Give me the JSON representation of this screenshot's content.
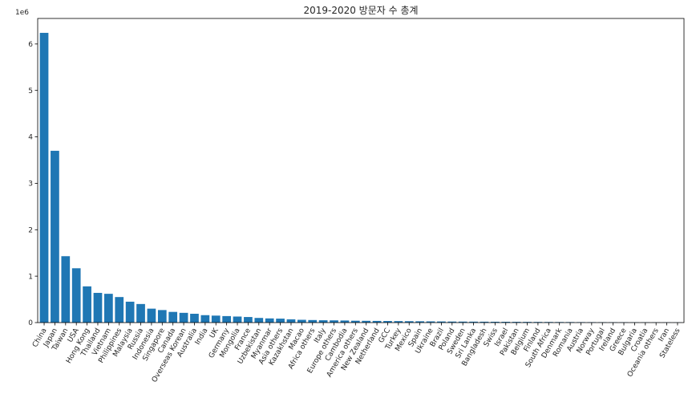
{
  "chart_data": {
    "type": "bar",
    "title": "2019-2020 방문자 수 총계",
    "xlabel": "",
    "ylabel": "",
    "y_offset_label": "1e6",
    "y_scale": 1000000,
    "ylim": [
      0,
      6550000
    ],
    "yticks": [
      0,
      1,
      2,
      3,
      4,
      5,
      6
    ],
    "grid": false,
    "legend": "none",
    "bar_color": "#1f77b4",
    "categories": [
      "China",
      "Japan",
      "Taiwan",
      "USA",
      "Hong Kong",
      "Thailand",
      "Vietnam",
      "Philippines",
      "Malaysia",
      "Russia",
      "Indonesia",
      "Singapore",
      "Canada",
      "Overseas Korean",
      "Australia",
      "India",
      "UK",
      "Germany",
      "Mongolia",
      "France",
      "Uzbekistan",
      "Myanmar",
      "Asia others",
      "Kazakhstan",
      "Macao",
      "Africa others",
      "Italy",
      "Europe others",
      "Cambodia",
      "America others",
      "New Zealand",
      "Netherland",
      "GCC",
      "Turkey",
      "Mexico",
      "Spain",
      "Ukraine",
      "Brazil",
      "Poland",
      "Sweden",
      "Sri Lanka",
      "Bangladesh",
      "Swiss",
      "Israel",
      "Pakistan",
      "Belgium",
      "Finland",
      "South Africa",
      "Denmark",
      "Romania",
      "Austria",
      "Norway",
      "Portugal",
      "Ireland",
      "Greece",
      "Bulgaria",
      "Croatia",
      "Oceania others",
      "Iran",
      "Stateless"
    ],
    "values": [
      6240000,
      3700000,
      1430000,
      1170000,
      780000,
      640000,
      620000,
      550000,
      450000,
      400000,
      300000,
      270000,
      230000,
      210000,
      190000,
      160000,
      150000,
      140000,
      130000,
      120000,
      100000,
      90000,
      85000,
      70000,
      60000,
      55000,
      50000,
      48000,
      45000,
      40000,
      38000,
      36000,
      34000,
      32000,
      30000,
      28000,
      26000,
      24000,
      22000,
      21000,
      20000,
      19000,
      18000,
      17000,
      16000,
      15000,
      14000,
      13000,
      12000,
      11000,
      10000,
      9500,
      9000,
      8500,
      8000,
      7000,
      6000,
      5500,
      5000,
      4000
    ]
  }
}
